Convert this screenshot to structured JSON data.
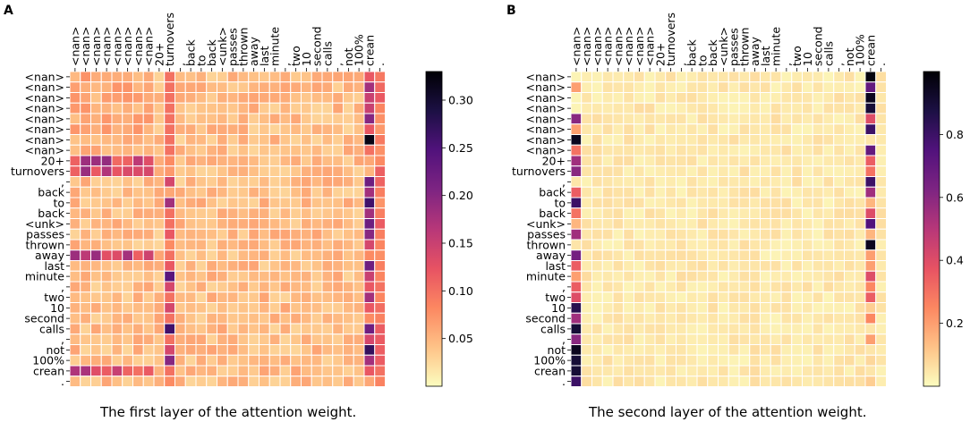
{
  "figure": {
    "panels": [
      "A",
      "B"
    ],
    "captions": [
      "The first layer of the attention weight.",
      "The second layer of the attention weight."
    ]
  },
  "colormap": {
    "name": "magma_r",
    "stops": [
      "#fcfdbf",
      "#fec287",
      "#fc8761",
      "#e75263",
      "#b73779",
      "#7d2482",
      "#51127c",
      "#1c1044",
      "#000004"
    ]
  },
  "chart_data": [
    {
      "type": "heatmap",
      "panel": "A",
      "title": "The first layer of the attention weight.",
      "x_labels": [
        "<nan>",
        "<nan>",
        "<nan>",
        "<nan>",
        "<nan>",
        "<nan>",
        "<nan>",
        "<nan>",
        "20+",
        "turnovers",
        ",",
        "back",
        "to",
        "back",
        "<unk>",
        "passes",
        "thrown",
        "away",
        "last",
        "minute",
        ",",
        "two",
        "10",
        "second",
        "calls",
        ",",
        "not",
        "100%",
        "crean",
        "."
      ],
      "y_labels": [
        "<nan>",
        "<nan>",
        "<nan>",
        "<nan>",
        "<nan>",
        "<nan>",
        "<nan>",
        "<nan>",
        "20+",
        "turnovers",
        ",",
        "back",
        "to",
        "back",
        "<unk>",
        "passes",
        "thrown",
        "away",
        "last",
        "minute",
        ",",
        "two",
        "10",
        "second",
        "calls",
        ",",
        "not",
        "100%",
        "crean",
        "."
      ],
      "colorbar": {
        "min": 0.0,
        "max": 0.33,
        "ticks": [
          0.05,
          0.1,
          0.15,
          0.2,
          0.25,
          0.3
        ],
        "tick_labels": [
          "0.05",
          "0.10",
          "0.15",
          "0.20",
          "0.25",
          "0.30"
        ]
      },
      "description": "Approximate attention weights: most rows concentrate on the 'turnovers' (col 9) and 'crean' (col 28) columns; rows '20+', 'turnovers', 'away' and 'crean' attend to the <nan> columns.",
      "focus_columns": {
        "turnovers": 9,
        "crean": 28
      },
      "values_by_row": [
        {
          "row": 0,
          "col9": 0.1,
          "col28": 0.12
        },
        {
          "row": 1,
          "col9": 0.1,
          "col28": 0.18
        },
        {
          "row": 2,
          "col9": 0.1,
          "col28": 0.15
        },
        {
          "row": 3,
          "col9": 0.1,
          "col28": 0.15
        },
        {
          "row": 4,
          "col9": 0.1,
          "col28": 0.2
        },
        {
          "row": 5,
          "col9": 0.1,
          "col28": 0.12
        },
        {
          "row": 6,
          "col9": 0.1,
          "col28": 0.32
        },
        {
          "row": 7,
          "col9": 0.1,
          "col28": 0.1
        },
        {
          "row": 8,
          "col9": 0.08,
          "col28": 0.06
        },
        {
          "row": 9,
          "col9": 0.07,
          "col28": 0.05
        },
        {
          "row": 10,
          "col9": 0.14,
          "col28": 0.22
        },
        {
          "row": 11,
          "col9": 0.06,
          "col28": 0.18
        },
        {
          "row": 12,
          "col9": 0.18,
          "col28": 0.26
        },
        {
          "row": 13,
          "col9": 0.1,
          "col28": 0.18
        },
        {
          "row": 14,
          "col9": 0.1,
          "col28": 0.22
        },
        {
          "row": 15,
          "col9": 0.12,
          "col28": 0.2
        },
        {
          "row": 16,
          "col9": 0.08,
          "col28": 0.14
        },
        {
          "row": 17,
          "col9": 0.1,
          "col28": 0.08
        },
        {
          "row": 18,
          "col9": 0.12,
          "col28": 0.22
        },
        {
          "row": 19,
          "col9": 0.24,
          "col28": 0.15
        },
        {
          "row": 20,
          "col9": 0.14,
          "col28": 0.12
        },
        {
          "row": 21,
          "col9": 0.1,
          "col28": 0.18
        },
        {
          "row": 22,
          "col9": 0.14,
          "col28": 0.12
        },
        {
          "row": 23,
          "col9": 0.1,
          "col28": 0.08
        },
        {
          "row": 24,
          "col9": 0.26,
          "col28": 0.22
        },
        {
          "row": 25,
          "col9": 0.1,
          "col28": 0.14
        },
        {
          "row": 26,
          "col9": 0.14,
          "col28": 0.27
        },
        {
          "row": 27,
          "col9": 0.2,
          "col28": 0.18
        },
        {
          "row": 28,
          "col9": 0.1,
          "col28": 0.12
        },
        {
          "row": 29,
          "col9": 0.08,
          "col28": 0.06
        }
      ]
    },
    {
      "type": "heatmap",
      "panel": "B",
      "title": "The second layer of the attention weight.",
      "x_labels": [
        "<nan>",
        "<nan>",
        "<nan>",
        "<nan>",
        "<nan>",
        "<nan>",
        "<nan>",
        "<nan>",
        "20+",
        "turnovers",
        ",",
        "back",
        "to",
        "back",
        "<unk>",
        "passes",
        "thrown",
        "away",
        "last",
        "minute",
        ",",
        "two",
        "10",
        "second",
        "calls",
        ",",
        "not",
        "100%",
        "crean",
        "."
      ],
      "y_labels": [
        "<nan>",
        "<nan>",
        "<nan>",
        "<nan>",
        "<nan>",
        "<nan>",
        "<nan>",
        "<nan>",
        "20+",
        "turnovers",
        ",",
        "back",
        "to",
        "back",
        "<unk>",
        "passes",
        "thrown",
        "away",
        "last",
        "minute",
        ",",
        "two",
        "10",
        "second",
        "calls",
        ",",
        "not",
        "100%",
        "crean",
        "."
      ],
      "colorbar": {
        "min": 0.0,
        "max": 1.0,
        "ticks": [
          0.2,
          0.4,
          0.6,
          0.8
        ],
        "tick_labels": [
          "0.2",
          "0.4",
          "0.6",
          "0.8"
        ]
      },
      "description": "Approximate attention weights: attention concentrates on the first <nan> column (col 0) and the 'crean' column (col 28).",
      "focus_columns": {
        "first_nan": 0,
        "crean": 28
      },
      "values_by_row": [
        {
          "row": 0,
          "col0": 0.02,
          "col28": 0.98
        },
        {
          "row": 1,
          "col0": 0.2,
          "col28": 0.7
        },
        {
          "row": 2,
          "col0": 0.02,
          "col28": 0.95
        },
        {
          "row": 3,
          "col0": 0.02,
          "col28": 0.9
        },
        {
          "row": 4,
          "col0": 0.6,
          "col28": 0.4
        },
        {
          "row": 5,
          "col0": 0.2,
          "col28": 0.8
        },
        {
          "row": 6,
          "col0": 0.95,
          "col28": 0.05
        },
        {
          "row": 7,
          "col0": 0.3,
          "col28": 0.7
        },
        {
          "row": 8,
          "col0": 0.55,
          "col28": 0.35
        },
        {
          "row": 9,
          "col0": 0.6,
          "col28": 0.3
        },
        {
          "row": 10,
          "col0": 0.05,
          "col28": 0.8
        },
        {
          "row": 11,
          "col0": 0.35,
          "col28": 0.55
        },
        {
          "row": 12,
          "col0": 0.8,
          "col28": 0.15
        },
        {
          "row": 13,
          "col0": 0.3,
          "col28": 0.4
        },
        {
          "row": 14,
          "col0": 0.15,
          "col28": 0.75
        },
        {
          "row": 15,
          "col0": 0.55,
          "col28": 0.15
        },
        {
          "row": 16,
          "col0": 0.05,
          "col28": 0.95
        },
        {
          "row": 17,
          "col0": 0.65,
          "col28": 0.2
        },
        {
          "row": 18,
          "col0": 0.35,
          "col28": 0.2
        },
        {
          "row": 19,
          "col0": 0.2,
          "col28": 0.4
        },
        {
          "row": 20,
          "col0": 0.35,
          "col28": 0.25
        },
        {
          "row": 21,
          "col0": 0.4,
          "col28": 0.35
        },
        {
          "row": 22,
          "col0": 0.85,
          "col28": 0.1
        },
        {
          "row": 23,
          "col0": 0.55,
          "col28": 0.25
        },
        {
          "row": 24,
          "col0": 0.9,
          "col28": 0.05
        },
        {
          "row": 25,
          "col0": 0.6,
          "col28": 0.2
        },
        {
          "row": 26,
          "col0": 0.95,
          "col28": 0.05
        },
        {
          "row": 27,
          "col0": 0.9,
          "col28": 0.08
        },
        {
          "row": 28,
          "col0": 0.9,
          "col28": 0.05
        },
        {
          "row": 29,
          "col0": 0.8,
          "col28": 0.1
        }
      ]
    }
  ]
}
